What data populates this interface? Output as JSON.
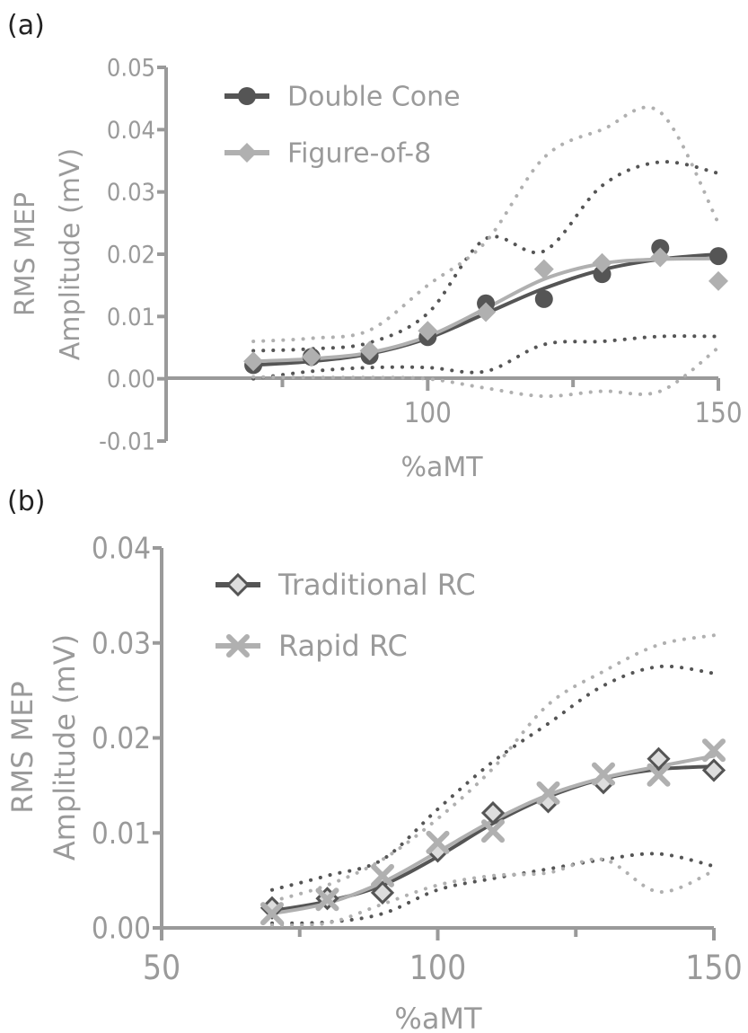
{
  "colors": {
    "dark": "#555555",
    "light": "#b0b0b0",
    "axis": "#9a9a9a",
    "text": "#9a9a9a",
    "label": "#222222"
  },
  "chart_data": [
    {
      "panel_label": "(a)",
      "type": "line",
      "xlabel": "%aMT",
      "ylabel_line1": "RMS MEP",
      "ylabel_line2": "Amplitude (mV)",
      "xlim": [
        55,
        150
      ],
      "ylim": [
        -0.01,
        0.05
      ],
      "xticks": [
        100,
        150
      ],
      "yticks": [
        -0.01,
        0.0,
        0.01,
        0.02,
        0.03,
        0.04,
        0.05
      ],
      "ytick_labels": [
        "-0.01",
        "0.00",
        "0.01",
        "0.02",
        "0.03",
        "0.04",
        "0.05"
      ],
      "legend_position": "top-left",
      "series": [
        {
          "name": "Double Cone",
          "marker": "circle",
          "color_key": "dark",
          "x": [
            70,
            80,
            90,
            100,
            110,
            120,
            130,
            140,
            150
          ],
          "y": [
            0.0022,
            0.0035,
            0.0037,
            0.0067,
            0.0121,
            0.0128,
            0.0168,
            0.021,
            0.0197
          ],
          "fit_y": [
            0.0022,
            0.0028,
            0.004,
            0.0065,
            0.0105,
            0.0145,
            0.0175,
            0.0192,
            0.02
          ],
          "ci_upper": [
            0.0045,
            0.0048,
            0.0058,
            0.0105,
            0.0225,
            0.0205,
            0.031,
            0.0348,
            0.033
          ],
          "ci_lower": [
            0.0,
            0.0012,
            0.0018,
            0.0018,
            0.0012,
            0.0055,
            0.006,
            0.0068,
            0.0068
          ]
        },
        {
          "name": "Figure-of-8",
          "marker": "diamond",
          "color_key": "light",
          "x": [
            70,
            80,
            90,
            100,
            110,
            120,
            130,
            140,
            150
          ],
          "y": [
            0.0028,
            0.0035,
            0.0045,
            0.0077,
            0.0107,
            0.0176,
            0.0186,
            0.0195,
            0.0157
          ],
          "fit_y": [
            0.0028,
            0.0032,
            0.0042,
            0.0068,
            0.0113,
            0.016,
            0.0185,
            0.0192,
            0.0193
          ],
          "ci_upper": [
            0.006,
            0.0065,
            0.0078,
            0.015,
            0.022,
            0.0355,
            0.04,
            0.0428,
            0.025
          ],
          "ci_lower": [
            0.0003,
            0.0002,
            0.0002,
            0.0,
            -0.0015,
            -0.0028,
            -0.002,
            -0.002,
            0.005
          ]
        }
      ]
    },
    {
      "panel_label": "(b)",
      "type": "line",
      "xlabel": "%aMT",
      "ylabel_line1": "RMS MEP",
      "ylabel_line2": "Amplitude (mV)",
      "xlim": [
        50,
        150
      ],
      "ylim": [
        0.0,
        0.04
      ],
      "xticks": [
        50,
        100,
        150
      ],
      "yticks": [
        0.0,
        0.01,
        0.02,
        0.03,
        0.04
      ],
      "ytick_labels": [
        "0.00",
        "0.01",
        "0.02",
        "0.03",
        "0.04"
      ],
      "legend_position": "top-left",
      "series": [
        {
          "name": "Traditional RC",
          "marker": "open-diamond",
          "color_key": "dark",
          "x": [
            70,
            80,
            90,
            100,
            110,
            120,
            130,
            140,
            150
          ],
          "y": [
            0.0021,
            0.0031,
            0.0037,
            0.0081,
            0.0121,
            0.0133,
            0.0153,
            0.0178,
            0.0166
          ],
          "fit_y": [
            0.0018,
            0.0028,
            0.0045,
            0.0075,
            0.011,
            0.0138,
            0.0157,
            0.0167,
            0.017
          ],
          "ci_upper": [
            0.004,
            0.0055,
            0.0072,
            0.0125,
            0.0175,
            0.0215,
            0.0255,
            0.0275,
            0.0268
          ],
          "ci_lower": [
            0.0005,
            0.0006,
            0.0015,
            0.004,
            0.0052,
            0.0062,
            0.0072,
            0.0078,
            0.0065
          ]
        },
        {
          "name": "Rapid RC",
          "marker": "x",
          "color_key": "light",
          "x": [
            70,
            80,
            90,
            100,
            110,
            120,
            130,
            140,
            150
          ],
          "y": [
            0.0015,
            0.003,
            0.0055,
            0.009,
            0.0102,
            0.0142,
            0.0162,
            0.0161,
            0.0187
          ],
          "fit_y": [
            0.0015,
            0.0026,
            0.0048,
            0.008,
            0.0113,
            0.014,
            0.0158,
            0.017,
            0.0181
          ],
          "ci_upper": [
            0.0028,
            0.0045,
            0.0072,
            0.0115,
            0.0168,
            0.0235,
            0.027,
            0.0298,
            0.0308
          ],
          "ci_lower": [
            0.0003,
            0.0005,
            0.0025,
            0.0045,
            0.0055,
            0.0058,
            0.0072,
            0.0038,
            0.006
          ]
        }
      ]
    }
  ]
}
